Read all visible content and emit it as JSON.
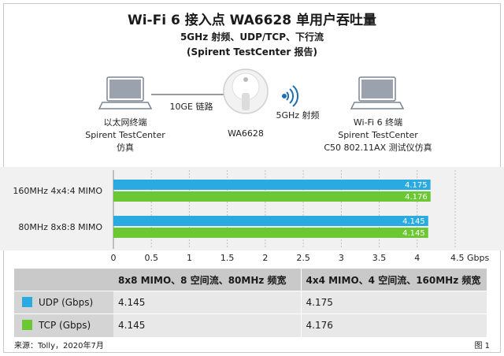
{
  "title": "Wi-Fi 6 接入点 WA6628 单用户吞吐量",
  "subtitle1": "5GHz 射频、UDP/TCP、下行流",
  "subtitle2": "(Spirent TestCenter 报告)",
  "diagram": {
    "left_device_line1": "以太网终端",
    "left_device_line2": "Spirent TestCenter",
    "left_device_line3": "仿真",
    "link_label": "10GE 链路",
    "ap_label": "WA6628",
    "radio_label": "5GHz 射频",
    "right_device_line1": "Wi-Fi 6 终端",
    "right_device_line2": "Spirent TestCenter",
    "right_device_line3": "C50 802.11AX 测试仪仿真"
  },
  "colors": {
    "udp": "#29aae1",
    "tcp": "#6cc832",
    "header_gray": "#c9c9c9",
    "row_gray": "#e8e8e8"
  },
  "chart_data": {
    "type": "bar",
    "orientation": "horizontal",
    "categories": [
      "160MHz 4x4:4 MIMO",
      "80MHz 8x8:8 MIMO"
    ],
    "series": [
      {
        "name": "UDP (Gbps)",
        "values": [
          4.175,
          4.145
        ],
        "color": "#29aae1"
      },
      {
        "name": "TCP (Gbps)",
        "values": [
          4.176,
          4.145
        ],
        "color": "#6cc832"
      }
    ],
    "value_labels": [
      [
        "4.175",
        "4.176"
      ],
      [
        "4.145",
        "4.145"
      ]
    ],
    "xlim": [
      0,
      4.5
    ],
    "xticks": [
      "0",
      "0.5",
      "1",
      "1.5",
      "2",
      "2.5",
      "3",
      "3.5",
      "4",
      "4.5 Gbps"
    ],
    "grid": true
  },
  "table": {
    "headers": [
      "",
      "8x8 MIMO、8 空间流、80MHz 频宽",
      "4x4 MIMO、4 空间流、160MHz 频宽"
    ],
    "rows": [
      {
        "label": "UDP (Gbps)",
        "swatch": "#29aae1",
        "values": [
          "4.145",
          "4.175"
        ]
      },
      {
        "label": "TCP (Gbps)",
        "swatch": "#6cc832",
        "values": [
          "4.145",
          "4.176"
        ]
      }
    ]
  },
  "footer": {
    "source": "来源：Tolly，2020年7月",
    "figure": "图 1"
  }
}
